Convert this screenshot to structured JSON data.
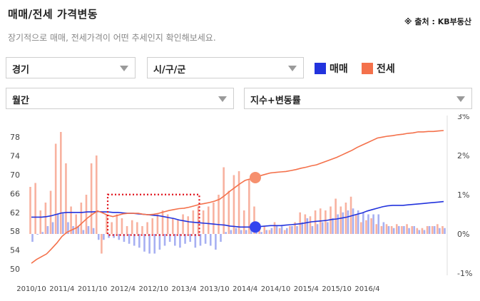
{
  "header": {
    "title": "매매/전세 가격변동",
    "source": "※ 출처 : KB부동산",
    "subtitle": "장기적으로 매매, 전세가격이 어떤 추세인지 확인해보세요."
  },
  "filters": {
    "region": "경기",
    "district": "시/구/군",
    "period": "월간",
    "metric": "지수+변동률"
  },
  "legend": {
    "sale_label": "매매",
    "jeonse_label": "전세"
  },
  "colors": {
    "sale": "#2233dd",
    "jeonse": "#f4714b",
    "sale_bar": "#a7b0f2",
    "jeonse_bar": "#f8b2a0",
    "highlight": "#e0111a"
  },
  "chart_data": {
    "type": "line",
    "x_ticks": [
      "2010/10",
      "2011/4",
      "2011/10",
      "2012/4",
      "2012/10",
      "2013/4",
      "2013/10",
      "2014/4",
      "2014/10",
      "2015/4",
      "2015/10",
      "2016/4"
    ],
    "left_axis": {
      "ticks": [
        "78",
        "74",
        "70",
        "66",
        "62",
        "58",
        "54",
        "50"
      ],
      "ylim": [
        50,
        80
      ]
    },
    "right_axis": {
      "ticks": [
        "3%",
        "2%",
        "1%",
        "0%",
        "-1%"
      ],
      "ylim": [
        -1,
        3
      ]
    },
    "series": [
      {
        "name": "매매",
        "axis": "left",
        "kind": "line",
        "values": [
          61.0,
          61.0,
          61.0,
          61.1,
          61.3,
          61.6,
          61.9,
          62.0,
          62.0,
          62.0,
          62.0,
          62.1,
          62.1,
          62.2,
          62.1,
          62.1,
          62.0,
          62.0,
          61.9,
          61.8,
          61.8,
          61.7,
          61.6,
          61.5,
          61.4,
          61.3,
          61.1,
          60.9,
          60.7,
          60.4,
          60.2,
          60.0,
          59.9,
          59.8,
          59.7,
          59.6,
          59.5,
          59.4,
          59.3,
          59.1,
          59.0,
          58.9,
          58.9,
          58.9,
          58.9,
          59.0,
          59.1,
          59.2,
          59.2,
          59.2,
          59.3,
          59.4,
          59.5,
          59.6,
          59.8,
          60.0,
          60.1,
          60.2,
          60.3,
          60.5,
          60.6,
          60.8,
          61.0,
          61.3,
          61.6,
          61.9,
          62.3,
          62.6,
          62.9,
          63.2,
          63.4,
          63.5,
          63.5,
          63.5,
          63.6,
          63.7,
          63.8,
          63.9,
          64.0,
          64.1,
          64.2,
          64.3
        ]
      },
      {
        "name": "전세",
        "axis": "left",
        "kind": "line",
        "values": [
          51.2,
          52.0,
          52.6,
          53.2,
          54.3,
          55.5,
          56.9,
          57.8,
          58.3,
          58.8,
          59.8,
          60.8,
          61.6,
          62.3,
          61.9,
          61.4,
          61.1,
          61.4,
          61.7,
          61.8,
          61.8,
          61.8,
          61.6,
          61.5,
          61.6,
          61.8,
          62.1,
          62.4,
          62.6,
          62.8,
          62.9,
          63.1,
          63.4,
          63.7,
          63.9,
          64.1,
          64.4,
          64.8,
          65.6,
          66.5,
          67.3,
          68.1,
          68.8,
          69.1,
          69.4,
          69.8,
          70.1,
          70.4,
          70.5,
          70.6,
          70.7,
          70.9,
          71.1,
          71.4,
          71.6,
          71.9,
          72.1,
          72.5,
          72.9,
          73.3,
          73.7,
          74.2,
          74.7,
          75.2,
          75.8,
          76.3,
          76.8,
          77.3,
          77.8,
          78.0,
          78.2,
          78.3,
          78.5,
          78.6,
          78.8,
          78.9,
          79.1,
          79.1,
          79.2,
          79.2,
          79.3,
          79.4
        ]
      },
      {
        "name": "매매",
        "axis": "right",
        "kind": "bar",
        "values": [
          -0.2,
          0.0,
          0.05,
          0.2,
          0.3,
          0.5,
          0.55,
          0.3,
          0.2,
          0.2,
          0.1,
          0.2,
          0.15,
          -0.15,
          -0.15,
          -0.1,
          -0.1,
          -0.15,
          -0.2,
          -0.25,
          -0.3,
          -0.35,
          -0.45,
          -0.5,
          -0.5,
          -0.4,
          -0.3,
          -0.2,
          -0.3,
          -0.35,
          -0.25,
          -0.2,
          -0.35,
          -0.3,
          -0.25,
          -0.3,
          -0.4,
          -0.2,
          0.05,
          0.1,
          0.15,
          0.1,
          0.1,
          0.2,
          0.2,
          0.05,
          0.1,
          0.15,
          0.2,
          0.2,
          0.15,
          0.2,
          0.2,
          0.3,
          0.4,
          0.2,
          0.25,
          0.3,
          0.3,
          0.4,
          0.5,
          0.55,
          0.6,
          0.65,
          0.6,
          0.55,
          0.5,
          0.5,
          0.5,
          0.3,
          0.2,
          0.15,
          0.2,
          0.2,
          0.15,
          0.2,
          0.1,
          0.1,
          0.2,
          0.2,
          0.15,
          0.15
        ]
      },
      {
        "name": "전세",
        "axis": "right",
        "kind": "bar",
        "values": [
          1.2,
          1.3,
          0.6,
          0.8,
          1.1,
          2.3,
          2.6,
          1.8,
          0.7,
          0.5,
          0.8,
          1.0,
          1.8,
          2.0,
          -0.5,
          0.5,
          0.3,
          0.5,
          0.4,
          0.2,
          0.35,
          0.3,
          0.2,
          0.3,
          0.4,
          0.5,
          0.6,
          0.5,
          0.4,
          0.35,
          0.5,
          0.45,
          0.6,
          0.7,
          0.6,
          0.7,
          0.8,
          1.0,
          1.7,
          1.1,
          1.5,
          1.6,
          0.6,
          1.4,
          0.7,
          0.15,
          0.2,
          0.1,
          0.3,
          0.15,
          0.1,
          0.2,
          0.3,
          0.55,
          0.5,
          0.45,
          0.6,
          0.65,
          0.6,
          0.7,
          0.9,
          0.7,
          0.8,
          0.95,
          0.5,
          0.3,
          0.35,
          0.4,
          0.25,
          0.2,
          0.25,
          0.2,
          0.25,
          0.2,
          0.25,
          0.2,
          0.15,
          0.15,
          0.2,
          0.2,
          0.25,
          0.2
        ]
      }
    ],
    "markers": [
      {
        "series": "매매",
        "index": 44
      },
      {
        "series": "전세",
        "index": 44
      }
    ],
    "highlight_box": {
      "index_range": [
        15,
        33
      ]
    },
    "grid": false,
    "legend_position": "top-right"
  }
}
